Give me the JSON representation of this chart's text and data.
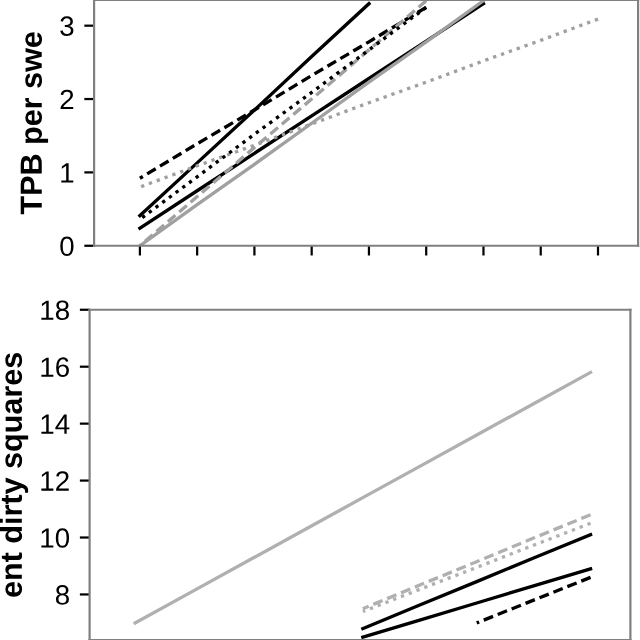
{
  "chart_data": [
    {
      "type": "line",
      "ylabel": "TPB per swe",
      "categories": [
        null,
        null,
        null,
        null,
        null,
        null,
        null,
        null,
        null
      ],
      "ylim": [
        0,
        3.35
      ],
      "yticks": [
        0,
        1,
        2,
        3
      ],
      "grid": false,
      "legend": false,
      "tick_labels": "y",
      "series": [
        {
          "color": "#000000",
          "line_style": "solid",
          "values": [
            0.41,
            1.13,
            1.85,
            2.58,
            3.3,
            null,
            null,
            null,
            null
          ]
        },
        {
          "color": "#000000",
          "line_style": "solid",
          "values": [
            0.24,
            0.75,
            1.26,
            1.77,
            2.28,
            2.79,
            3.3,
            null,
            null
          ]
        },
        {
          "color": "#000000",
          "line_style": "dashed",
          "values": [
            0.92,
            1.39,
            1.85,
            2.32,
            2.78,
            3.25,
            null,
            null,
            null
          ]
        },
        {
          "color": "#a0a0a0",
          "line_style": "solid",
          "values": [
            0.0,
            0.56,
            1.11,
            1.67,
            2.23,
            2.78,
            3.34,
            null,
            null
          ]
        },
        {
          "color": "#a0a0a0",
          "line_style": "dotted",
          "values": [
            0.8,
            1.09,
            1.37,
            1.66,
            1.95,
            2.23,
            2.52,
            2.8,
            3.09
          ]
        },
        {
          "color": "#a0a0a0",
          "line_style": "dashed",
          "values": [
            0.0,
            0.67,
            1.34,
            2.0,
            2.67,
            3.34,
            null,
            null,
            null
          ]
        },
        {
          "color": "#000000",
          "line_style": "dotted",
          "values": [
            0.36,
            0.94,
            1.52,
            2.09,
            2.67,
            3.25,
            null,
            null,
            null
          ]
        }
      ]
    },
    {
      "type": "line",
      "ylabel": "ent dirty squares",
      "categories": [
        null,
        null,
        null,
        null,
        null,
        null,
        null,
        null,
        null
      ],
      "ylim": [
        6.4,
        18
      ],
      "yticks": [
        8,
        10,
        12,
        14,
        16,
        18
      ],
      "grid": false,
      "legend": false,
      "tick_labels": "y",
      "series": [
        {
          "color": "#b0b0b0",
          "line_style": "solid",
          "values": [
            7.0,
            8.1,
            9.2,
            10.3,
            11.4,
            12.5,
            13.6,
            14.7,
            15.8
          ]
        },
        {
          "color": "#000000",
          "line_style": "solid",
          "values": [
            null,
            null,
            null,
            null,
            6.8,
            7.63,
            8.45,
            9.28,
            10.1
          ]
        },
        {
          "color": "#000000",
          "line_style": "solid",
          "values": [
            null,
            null,
            null,
            null,
            6.5,
            7.1,
            7.7,
            8.3,
            8.9
          ]
        },
        {
          "color": "#000000",
          "line_style": "dashed",
          "values": [
            null,
            null,
            null,
            null,
            null,
            null,
            7.0,
            7.8,
            8.6
          ]
        },
        {
          "color": "#b0b0b0",
          "line_style": "dashed",
          "values": [
            null,
            null,
            null,
            null,
            7.5,
            8.33,
            9.15,
            9.98,
            10.8
          ]
        },
        {
          "color": "#b0b0b0",
          "line_style": "dotted",
          "values": [
            null,
            null,
            null,
            null,
            7.4,
            8.18,
            8.95,
            9.73,
            10.5
          ]
        }
      ]
    }
  ]
}
